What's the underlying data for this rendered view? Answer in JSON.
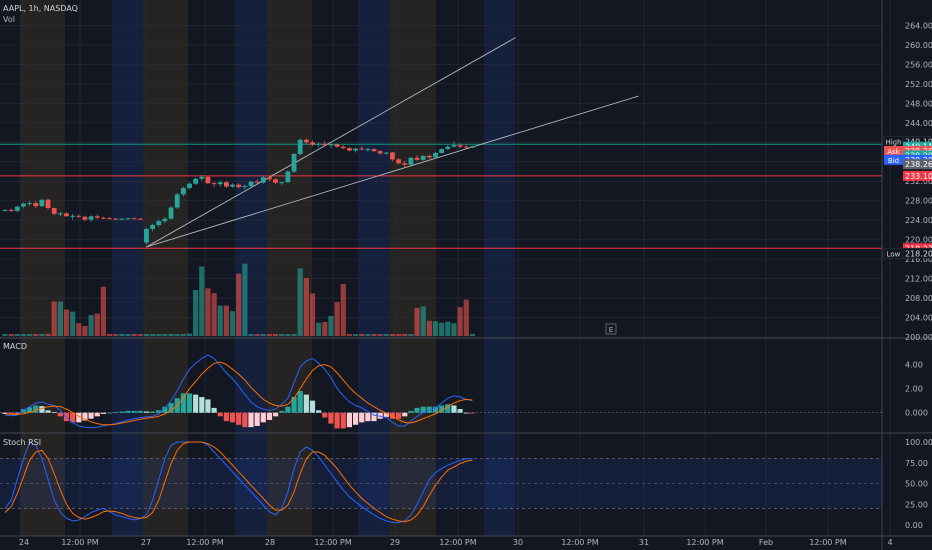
{
  "header": {
    "symbol": "AAPL, 1h, NASDAQ",
    "vol_label": "Vol"
  },
  "panes": {
    "macd_label": "MACD",
    "stoch_label": "Stoch RSI",
    "event_marker": "E"
  },
  "colors": {
    "up": "#26a69a",
    "down": "#ef5350",
    "macd": "#2962ff",
    "signal": "#ff6d00",
    "hline": "#f23645",
    "teal": "#089981",
    "channel": "#b2b5be",
    "session": "#b28030"
  },
  "price_axis": {
    "ticks": [
      "264.00",
      "260.00",
      "256.00",
      "252.00",
      "248.00",
      "244.00",
      "240.00",
      "236.00",
      "232.00",
      "228.00",
      "224.00",
      "220.00",
      "216.00",
      "212.00",
      "208.00",
      "204.00",
      "200.00"
    ]
  },
  "macd_axis": {
    "ticks": [
      "4.00",
      "2.00",
      "0.000"
    ]
  },
  "stoch_axis": {
    "ticks": [
      "100.00",
      "75.00",
      "50.00",
      "25.00",
      "0.00"
    ]
  },
  "time_axis": {
    "labels": [
      "24",
      "12:00 PM",
      "27",
      "12:00 PM",
      "28",
      "12:00 PM",
      "29",
      "12:00 PM",
      "30",
      "12:00 PM",
      "31",
      "12:00 PM",
      "Feb",
      "12:00 PM",
      "4"
    ]
  },
  "price_tags": [
    {
      "label": "High",
      "value": "240.19",
      "price": 240.19,
      "color": "#131722",
      "text": "#d1d4dc",
      "border": "#2a2e39"
    },
    {
      "label": "",
      "value": "240.11",
      "price": 239.1,
      "color": "#26a69a",
      "text": "#ffffff",
      "border": ""
    },
    {
      "label": "Ask",
      "value": "239.26",
      "price": 238.2,
      "color": "#ef5350",
      "text": "#ffffff",
      "border": ""
    },
    {
      "label": "",
      "value": "239.20",
      "price": 237.3,
      "color": "#26a69a",
      "text": "#ffffff",
      "border": ""
    },
    {
      "label": "Bid",
      "value": "239.20",
      "price": 236.4,
      "color": "#2962ff",
      "text": "#ffffff",
      "border": ""
    },
    {
      "label": "",
      "value": "238.26",
      "price": 235.5,
      "color": "#5d606b",
      "text": "#ffffff",
      "border": ""
    },
    {
      "label": "",
      "value": "233.10",
      "price": 233.1,
      "color": "#f23645",
      "text": "#ffffff",
      "border": ""
    },
    {
      "label": "",
      "value": "218.23",
      "price": 218.23,
      "color": "#f23645",
      "text": "#ffffff",
      "border": ""
    },
    {
      "label": "Low",
      "value": "218.20",
      "price": 217.2,
      "color": "#131722",
      "text": "#d1d4dc",
      "border": "#2a2e39"
    }
  ],
  "chart_data": {
    "type": "candlestick",
    "symbol": "AAPL",
    "interval": "1h",
    "exchange": "NASDAQ",
    "price_range": [
      200,
      268
    ],
    "horizontal_lines": [
      239.6,
      233.1,
      218.23
    ],
    "channel_lines": [
      {
        "from": [
          23,
          218.5
        ],
        "to": [
          83,
          261.5
        ]
      },
      {
        "from": [
          23,
          218.5
        ],
        "to": [
          103,
          249.5
        ]
      }
    ],
    "candles": [
      [
        226,
        226.3,
        225.8,
        226.1
      ],
      [
        226.1,
        226.4,
        225.7,
        225.9
      ],
      [
        225.9,
        227,
        225.6,
        226.8
      ],
      [
        226.8,
        227.6,
        226.4,
        227.4
      ],
      [
        227.4,
        228,
        227,
        227.5
      ],
      [
        227.5,
        227.9,
        226.5,
        226.9
      ],
      [
        226.9,
        228.3,
        226.7,
        228.2
      ],
      [
        228.2,
        228.4,
        226.2,
        226.5
      ],
      [
        226.5,
        226.6,
        225,
        225.3
      ],
      [
        225.3,
        225.7,
        224.8,
        225.4
      ],
      [
        225.4,
        225.6,
        224.7,
        224.8
      ],
      [
        224.8,
        225.3,
        224.1,
        224.9
      ],
      [
        224.9,
        225.2,
        224.4,
        224.7
      ],
      [
        224.7,
        224.9,
        223.8,
        224.1
      ],
      [
        224.1,
        225,
        223.7,
        224.8
      ],
      [
        224.8,
        225.2,
        224.2,
        224.5
      ],
      [
        224.5,
        224.7,
        224.2,
        224.4
      ],
      [
        224.4,
        224.6,
        224.2,
        224.3
      ],
      [
        224.3,
        224.5,
        224,
        224.2
      ],
      [
        224.2,
        224.4,
        224,
        224.3
      ],
      [
        224.3,
        224.5,
        224.1,
        224.4
      ],
      [
        224.4,
        224.5,
        224.2,
        224.3
      ],
      [
        224.3,
        224.5,
        224.1,
        224.2
      ],
      [
        219.4,
        222.5,
        219,
        222.2
      ],
      [
        222.2,
        223.3,
        221.7,
        223
      ],
      [
        223,
        224.1,
        222.6,
        223.8
      ],
      [
        223.8,
        224.6,
        223.4,
        224.3
      ],
      [
        224.3,
        226.9,
        224.1,
        226.6
      ],
      [
        226.6,
        229.6,
        226.3,
        229.3
      ],
      [
        229.3,
        230.9,
        228.9,
        230.6
      ],
      [
        230.6,
        231.8,
        230.3,
        231.5
      ],
      [
        231.5,
        232.8,
        231.2,
        232.5
      ],
      [
        232.5,
        233.3,
        232.1,
        232.9
      ],
      [
        232.9,
        233.1,
        231.4,
        231.6
      ],
      [
        231.6,
        231.9,
        230.8,
        231.4
      ],
      [
        231.4,
        232.1,
        230.9,
        231.8
      ],
      [
        231.8,
        232,
        230.6,
        230.9
      ],
      [
        230.9,
        231.6,
        230.6,
        231.3
      ],
      [
        231.3,
        231.6,
        230.5,
        230.8
      ],
      [
        230.8,
        231.3,
        230.3,
        231
      ],
      [
        231,
        232.1,
        230.8,
        231.9
      ],
      [
        231.9,
        232.4,
        231.4,
        231.7
      ],
      [
        231.7,
        233.1,
        231.5,
        232.8
      ],
      [
        232.8,
        233,
        232,
        232.4
      ],
      [
        232.4,
        232.6,
        231.4,
        231.7
      ],
      [
        231.7,
        231.9,
        231.2,
        231.8
      ],
      [
        231.8,
        234.2,
        231.6,
        234
      ],
      [
        234,
        237.8,
        233.7,
        237.6
      ],
      [
        237.6,
        240.8,
        237.2,
        240.5
      ],
      [
        240.5,
        240.8,
        239.7,
        240
      ],
      [
        240,
        240.4,
        239.2,
        239.5
      ],
      [
        239.5,
        240,
        239,
        239.7
      ],
      [
        239.7,
        240.3,
        239.2,
        239.4
      ],
      [
        239.4,
        239.7,
        238.8,
        239.6
      ],
      [
        239.6,
        239.8,
        238.9,
        239.1
      ],
      [
        239.1,
        239.4,
        238.6,
        238.8
      ],
      [
        238.8,
        239,
        238.1,
        238.3
      ],
      [
        238.3,
        238.9,
        237.9,
        238.7
      ],
      [
        238.7,
        239.2,
        238.4,
        238.5
      ],
      [
        238.5,
        238.9,
        238.1,
        238.6
      ],
      [
        238.6,
        238.8,
        238,
        238.2
      ],
      [
        238.2,
        238.4,
        237.5,
        237.7
      ],
      [
        237.7,
        238,
        237.4,
        237.9
      ],
      [
        237.9,
        238,
        236.1,
        236.5
      ],
      [
        236.5,
        236.8,
        235.4,
        235.7
      ],
      [
        235.7,
        236.2,
        234.9,
        235.4
      ],
      [
        235.4,
        237,
        235.2,
        236.8
      ],
      [
        236.8,
        237.4,
        236.2,
        236.4
      ],
      [
        236.4,
        237.4,
        236.2,
        237.2
      ],
      [
        237.2,
        237.5,
        236.6,
        236.9
      ],
      [
        236.9,
        238,
        236.7,
        237.8
      ],
      [
        237.8,
        238.8,
        237.6,
        238.6
      ],
      [
        238.6,
        239.4,
        238.4,
        239.1
      ],
      [
        239.1,
        240.2,
        238.9,
        239.4
      ],
      [
        239.4,
        239.8,
        238.8,
        239.1
      ],
      [
        239.1,
        239.5,
        238.7,
        238.9
      ],
      [
        238.9,
        239.3,
        238.8,
        239.2
      ]
    ],
    "volume": [
      0.5,
      0.5,
      0.5,
      0.5,
      0.5,
      0.5,
      0.5,
      0.55,
      8.6,
      8.6,
      6.6,
      6.1,
      3.2,
      2.5,
      5.2,
      5.6,
      12.3,
      0.5,
      0.5,
      0.5,
      0.5,
      0.5,
      0.5,
      0.5,
      0.5,
      0.5,
      0.5,
      0.5,
      0.5,
      0.5,
      0.6,
      11.5,
      17.4,
      11.9,
      10.7,
      7.6,
      7.6,
      6.2,
      15.6,
      18.1,
      0.5,
      0.5,
      0.5,
      0.5,
      0.5,
      0.5,
      0.5,
      0.5,
      16.9,
      14.5,
      10.6,
      3.3,
      3.5,
      5,
      8.5,
      13,
      0.5,
      0.5,
      0.5,
      0.5,
      0.5,
      0.5,
      0.5,
      0.5,
      0.5,
      0.5,
      0.5,
      7,
      7.4,
      3.8,
      3.7,
      3.3,
      3.6,
      3.2,
      7.2,
      9.1,
      0.5
    ],
    "macd": [
      -0.2,
      -0.25,
      -0.2,
      0.2,
      0.5,
      0.8,
      0.9,
      0.7,
      0.6,
      0.2,
      -0.4,
      -0.8,
      -1.1,
      -1.2,
      -1.25,
      -1.2,
      -1.1,
      -1,
      -0.9,
      -0.75,
      -0.6,
      -0.5,
      -0.4,
      -0.35,
      -0.3,
      -0.1,
      0.4,
      1,
      1.8,
      2.8,
      3.6,
      4.1,
      4.5,
      4.8,
      4.5,
      3.9,
      3.3,
      2.8,
      2.2,
      1.5,
      0.9,
      0.5,
      0.3,
      0.2,
      0.3,
      0.7,
      1.2,
      2.5,
      3.8,
      4.3,
      4.5,
      4.1,
      3.6,
      2.9,
      2,
      1.4,
      0.9,
      0.6,
      0.4,
      0.1,
      -0.2,
      -0.3,
      -0.4,
      -0.8,
      -1.1,
      -1.1,
      -0.7,
      -0.3,
      0,
      0.2,
      0.4,
      0.8,
      1.2,
      1.4,
      1.3,
      1.1,
      1
    ],
    "signal": [
      -0.1,
      -0.12,
      -0.15,
      -0.1,
      0.05,
      0.2,
      0.35,
      0.5,
      0.55,
      0.5,
      0.3,
      0,
      -0.3,
      -0.55,
      -0.75,
      -0.9,
      -1,
      -1,
      -0.95,
      -0.85,
      -0.75,
      -0.65,
      -0.55,
      -0.45,
      -0.4,
      -0.3,
      -0.1,
      0.2,
      0.6,
      1.2,
      2,
      2.6,
      3.2,
      3.7,
      4.1,
      4.2,
      4,
      3.6,
      3.2,
      2.7,
      2.1,
      1.6,
      1.1,
      0.8,
      0.6,
      0.55,
      0.7,
      1.2,
      2,
      2.8,
      3.5,
      3.9,
      4,
      3.8,
      3.3,
      2.7,
      2.1,
      1.6,
      1.2,
      0.8,
      0.5,
      0.2,
      -0.05,
      -0.3,
      -0.6,
      -0.8,
      -0.85,
      -0.7,
      -0.5,
      -0.3,
      -0.1,
      0.2,
      0.5,
      0.8,
      1,
      1.1,
      1.05
    ],
    "stoch_k": [
      20,
      30,
      55,
      80,
      100,
      96,
      80,
      55,
      30,
      15,
      8,
      5,
      6,
      10,
      15,
      18,
      20,
      16,
      12,
      10,
      8,
      6,
      8,
      12,
      30,
      55,
      80,
      96,
      100,
      100,
      100,
      100,
      100,
      96,
      88,
      80,
      72,
      64,
      56,
      48,
      40,
      32,
      24,
      16,
      12,
      20,
      40,
      68,
      88,
      94,
      90,
      82,
      72,
      62,
      52,
      42,
      34,
      28,
      22,
      17,
      12,
      8,
      5,
      3,
      3,
      5,
      12,
      25,
      40,
      55,
      63,
      68,
      72,
      75,
      78,
      80,
      80
    ],
    "stoch_d": [
      15,
      22,
      38,
      58,
      78,
      88,
      90,
      80,
      62,
      42,
      25,
      14,
      9,
      7,
      9,
      12,
      16,
      17,
      16,
      14,
      11,
      9,
      8,
      9,
      15,
      30,
      52,
      74,
      90,
      98,
      100,
      100,
      100,
      98,
      94,
      88,
      80,
      72,
      64,
      56,
      48,
      40,
      32,
      24,
      18,
      18,
      24,
      40,
      62,
      80,
      88,
      88,
      84,
      76,
      68,
      58,
      48,
      40,
      32,
      26,
      20,
      15,
      10,
      7,
      5,
      4,
      6,
      12,
      22,
      36,
      48,
      58,
      66,
      70,
      74,
      77,
      78
    ]
  }
}
